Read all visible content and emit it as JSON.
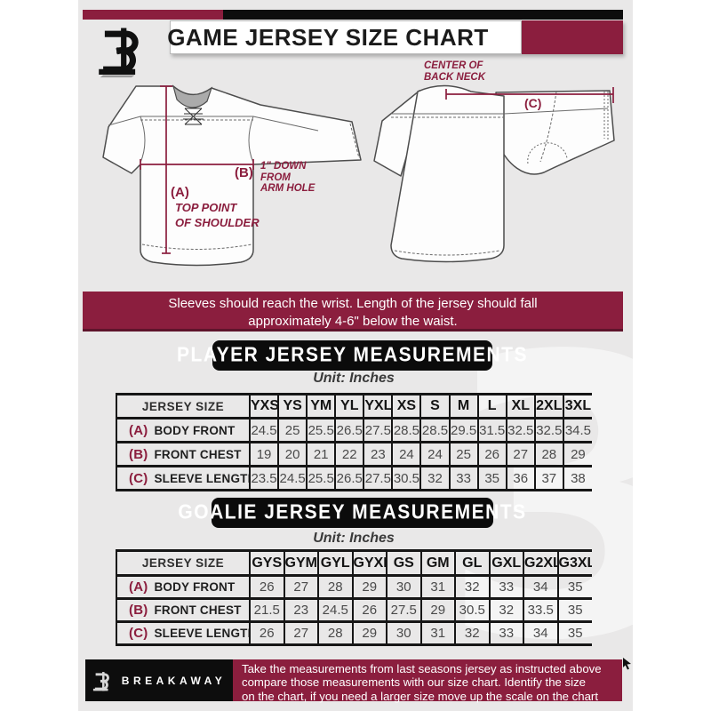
{
  "header": {
    "title": "GAME JERSEY SIZE CHART"
  },
  "diagram": {
    "front": {
      "a_tag": "(A)",
      "a_caption_l1": "TOP POINT",
      "a_caption_l2": "OF SHOULDER",
      "b_tag": "(B)",
      "b_caption_l1": "1\" DOWN",
      "b_caption_l2": "FROM",
      "b_caption_l3": "ARM HOLE"
    },
    "back": {
      "c_tag": "(C)",
      "caption_l1": "CENTER OF",
      "caption_l2": "BACK NECK"
    }
  },
  "notice": {
    "line1": "Sleeves should reach the wrist. Length of the jersey should fall",
    "line2": "approximately 4-6\" below the waist."
  },
  "player_table": {
    "title": "PLAYER JERSEY MEASUREMENTS",
    "unit": "Unit: Inches",
    "corner": "JERSEY SIZE",
    "sizes": [
      "YXS",
      "YS",
      "YM",
      "YL",
      "YXL",
      "XS",
      "S",
      "M",
      "L",
      "XL",
      "2XL",
      "3XL"
    ],
    "rows": [
      {
        "tag": "(A)",
        "label": "BODY FRONT",
        "values": [
          "24.5",
          "25",
          "25.5",
          "26.5",
          "27.5",
          "28.5",
          "28.5",
          "29.5",
          "31.5",
          "32.5",
          "32.5",
          "34.5"
        ]
      },
      {
        "tag": "(B)",
        "label": "FRONT CHEST",
        "values": [
          "19",
          "20",
          "21",
          "22",
          "23",
          "24",
          "24",
          "25",
          "26",
          "27",
          "28",
          "29"
        ]
      },
      {
        "tag": "(C)",
        "label": "SLEEVE LENGTH",
        "values": [
          "23.5",
          "24.5",
          "25.5",
          "26.5",
          "27.5",
          "30.5",
          "32",
          "33",
          "35",
          "36",
          "37",
          "38"
        ]
      }
    ]
  },
  "goalie_table": {
    "title": "GOALIE JERSEY MEASUREMENTS",
    "unit": "Unit: Inches",
    "corner": "JERSEY SIZE",
    "sizes": [
      "GYS",
      "GYM",
      "GYL",
      "GYXL",
      "GS",
      "GM",
      "GL",
      "GXL",
      "G2XL",
      "G3XL"
    ],
    "rows": [
      {
        "tag": "(A)",
        "label": "BODY FRONT",
        "values": [
          "26",
          "27",
          "28",
          "29",
          "30",
          "31",
          "32",
          "33",
          "34",
          "35"
        ]
      },
      {
        "tag": "(B)",
        "label": "FRONT CHEST",
        "values": [
          "21.5",
          "23",
          "24.5",
          "26",
          "27.5",
          "29",
          "30.5",
          "32",
          "33.5",
          "35"
        ]
      },
      {
        "tag": "(C)",
        "label": "SLEEVE LENGTH",
        "values": [
          "26",
          "27",
          "28",
          "29",
          "30",
          "31",
          "32",
          "33",
          "34",
          "35"
        ]
      }
    ]
  },
  "footer": {
    "brand": "BREAKAWAY",
    "line1": "Take the measurements from last seasons jersey as instructed above",
    "line2": "compare those measurements  with our size chart. Identify the size",
    "line3": "on the chart, if you need a larger size move up the scale on the chart"
  },
  "watermark": {
    "glyph": "3"
  },
  "colors": {
    "maroon": "#8B1E3E",
    "black": "#0D0D0D",
    "background": "#E9E8E8"
  }
}
